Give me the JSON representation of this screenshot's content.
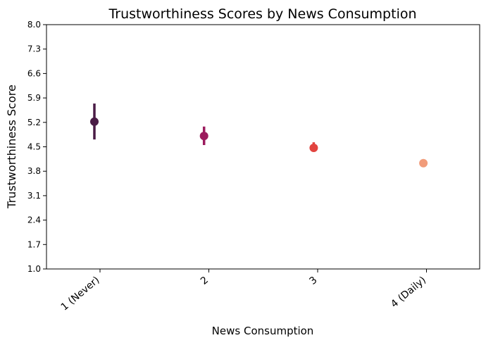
{
  "chart_data": {
    "type": "pointplot",
    "title": "Trustworthiness Scores by News Consumption",
    "xlabel": "News Consumption",
    "ylabel": "Trustworthiness Score",
    "categories": [
      "1 (Never)",
      "2",
      "3",
      "4 (Daily)"
    ],
    "ylim": [
      1.0,
      8.0
    ],
    "yticks": [
      "1.0",
      "1.7",
      "2.4",
      "3.1",
      "3.8",
      "4.5",
      "5.2",
      "5.9",
      "6.6",
      "7.3",
      "8.0"
    ],
    "grid": false,
    "points": [
      {
        "category": "1 (Never)",
        "value": 5.22,
        "ci_low": 4.71,
        "ci_high": 5.74,
        "color": "#4a1c46"
      },
      {
        "category": "2",
        "value": 4.81,
        "ci_low": 4.55,
        "ci_high": 5.08,
        "color": "#9b1b5d"
      },
      {
        "category": "3",
        "value": 4.47,
        "ci_low": 4.38,
        "ci_high": 4.63,
        "color": "#e2443f"
      },
      {
        "category": "4 (Daily)",
        "value": 4.03,
        "ci_low": 3.97,
        "ci_high": 4.12,
        "color": "#f19c7a"
      }
    ]
  }
}
